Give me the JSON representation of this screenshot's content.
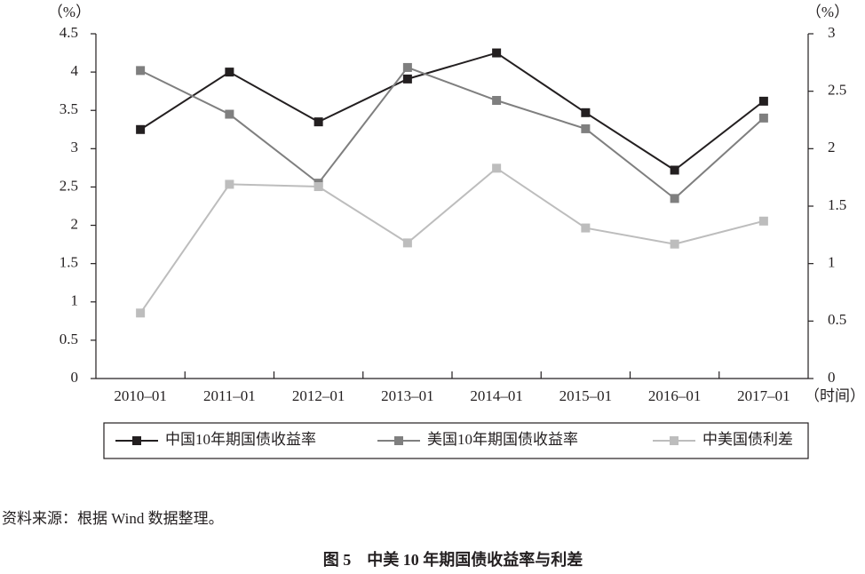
{
  "chart_data": {
    "type": "line",
    "categories": [
      "2010–01",
      "2011–01",
      "2012–01",
      "2013–01",
      "2014–01",
      "2015–01",
      "2016–01",
      "2017–01"
    ],
    "series": [
      {
        "name": "中国10年期国债收益率",
        "color": "#231f20",
        "values": [
          3.25,
          4.0,
          3.35,
          3.91,
          4.25,
          3.47,
          2.72,
          3.62
        ]
      },
      {
        "name": "美国10年期国债收益率",
        "color": "#7f7f7f",
        "values": [
          4.02,
          3.45,
          2.55,
          4.06,
          3.63,
          3.26,
          2.35,
          3.4
        ]
      },
      {
        "name": "中美国债利差",
        "color": "#bdbdbd",
        "axis": "y2",
        "values": [
          0.57,
          1.69,
          1.67,
          1.18,
          1.83,
          1.31,
          1.17,
          1.37
        ]
      }
    ],
    "ylim": [
      0,
      4.5
    ],
    "yticks": [
      0,
      0.5,
      1,
      1.5,
      2,
      2.5,
      3,
      3.5,
      4,
      4.5
    ],
    "y2lim": [
      0,
      3
    ],
    "y2ticks": [
      0,
      0.5,
      1,
      1.5,
      2,
      2.5,
      3
    ],
    "y_label": "（%）",
    "y2_label": "（%）",
    "x_label": "（时间）",
    "source": "资料来源：根据 Wind 数据整理。",
    "caption": "图 5　中美 10 年期国债收益率与利差"
  }
}
